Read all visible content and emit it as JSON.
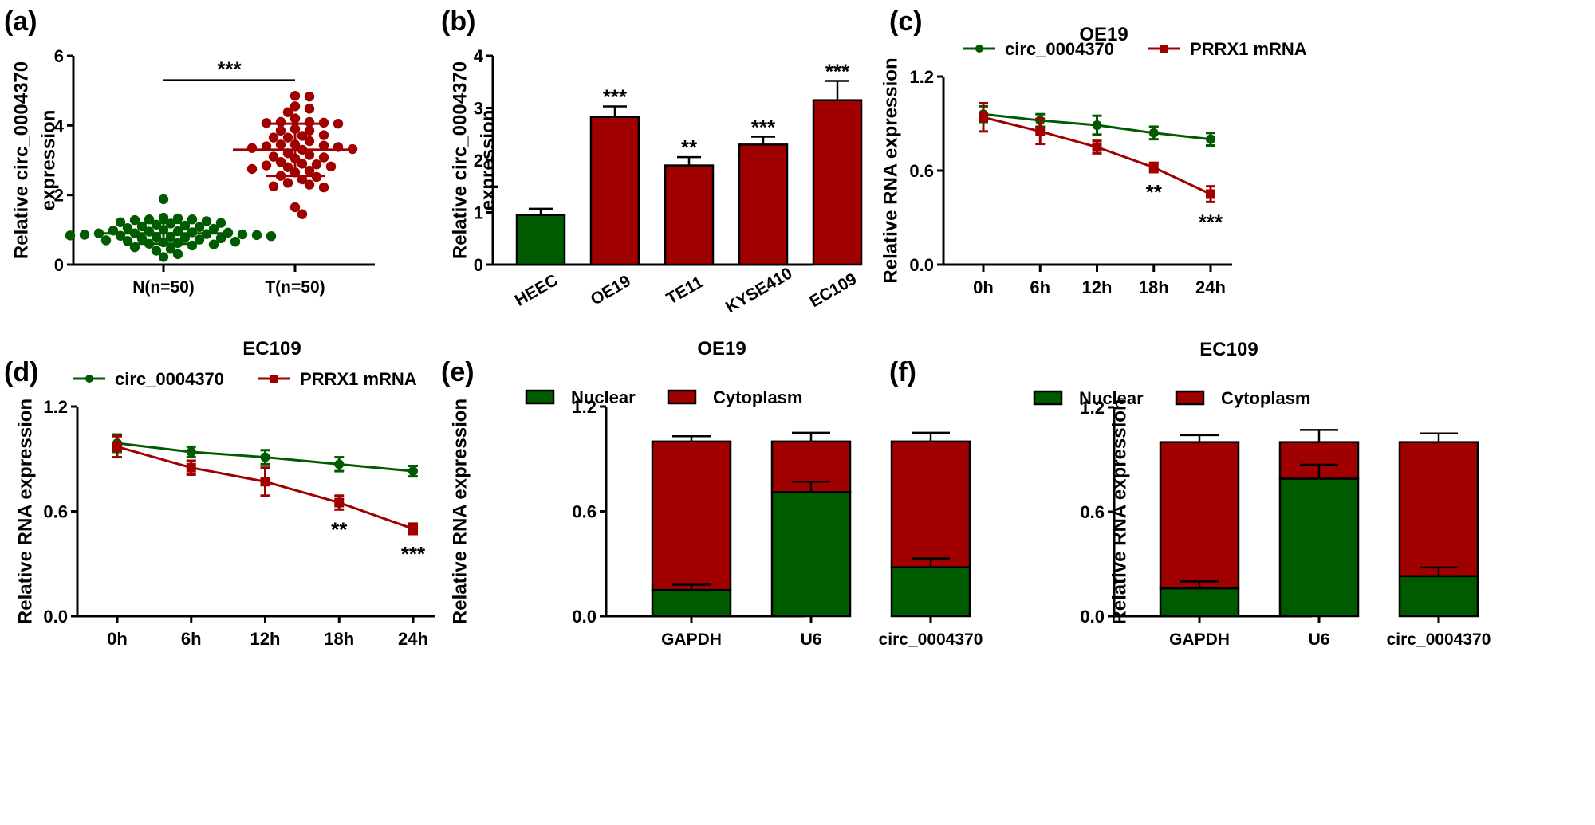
{
  "colors": {
    "green": "#005A00",
    "red": "#A00000",
    "axis": "#000000"
  },
  "chart_data": [
    {
      "id": "a",
      "panel_label": "(a)",
      "type": "scatter",
      "title": "",
      "xlabel": "",
      "ylabel_lines": [
        "Relative circ_0004370",
        "expression"
      ],
      "ylim": [
        0,
        6
      ],
      "yticks": [
        0,
        2,
        4,
        6
      ],
      "categories": [
        "N(n=50)",
        "T(n=50)"
      ],
      "series": [
        {
          "name": "N(n=50)",
          "color": "green",
          "mean": 0.9,
          "sd": 0.3,
          "values": [
            1.88,
            1.35,
            1.33,
            1.3,
            1.3,
            1.28,
            1.25,
            1.22,
            1.2,
            1.18,
            1.15,
            1.12,
            1.1,
            1.08,
            1.05,
            1.03,
            1.0,
            0.98,
            0.96,
            0.95,
            0.93,
            0.92,
            0.9,
            0.9,
            0.88,
            0.87,
            0.86,
            0.85,
            0.84,
            0.83,
            0.82,
            0.8,
            0.8,
            0.78,
            0.76,
            0.75,
            0.72,
            0.7,
            0.68,
            0.66,
            0.64,
            0.62,
            0.6,
            0.58,
            0.55,
            0.5,
            0.45,
            0.4,
            0.3,
            0.22
          ]
        },
        {
          "name": "T(n=50)",
          "color": "red",
          "mean": 3.3,
          "sd": 0.75,
          "values": [
            4.85,
            4.83,
            4.55,
            4.48,
            4.38,
            4.2,
            4.1,
            4.1,
            4.08,
            4.07,
            4.05,
            3.9,
            3.85,
            3.85,
            3.72,
            3.7,
            3.65,
            3.65,
            3.55,
            3.45,
            3.45,
            3.42,
            3.4,
            3.38,
            3.35,
            3.32,
            3.3,
            3.2,
            3.15,
            3.1,
            3.08,
            3.05,
            2.95,
            2.9,
            2.88,
            2.85,
            2.82,
            2.8,
            2.75,
            2.7,
            2.65,
            2.55,
            2.52,
            2.45,
            2.35,
            2.3,
            2.25,
            2.22,
            1.65,
            1.45
          ]
        }
      ],
      "annotations": [
        {
          "text": "***",
          "between": [
            "N(n=50)",
            "T(n=50)"
          ],
          "bar_y": 5.3
        }
      ]
    },
    {
      "id": "b",
      "panel_label": "(b)",
      "type": "bar",
      "title": "",
      "xlabel": "",
      "ylabel_lines": [
        "Relative circ_0004370",
        "expression"
      ],
      "ylim": [
        0,
        4
      ],
      "yticks": [
        0,
        1,
        2,
        3,
        4
      ],
      "categories": [
        "HEEC",
        "OE19",
        "TE11",
        "KYSE410",
        "EC109"
      ],
      "values": [
        0.95,
        2.83,
        1.9,
        2.3,
        3.15
      ],
      "errors": [
        0.12,
        0.2,
        0.16,
        0.15,
        0.37
      ],
      "bar_colors": [
        "green",
        "red",
        "red",
        "red",
        "red"
      ],
      "significance": [
        "",
        "***",
        "**",
        "***",
        "***"
      ]
    },
    {
      "id": "c",
      "panel_label": "(c)",
      "type": "line",
      "title": "OE19",
      "xlabel": "",
      "ylabel_lines": [
        "Relative  RNA expression"
      ],
      "ylim": [
        0,
        1.2
      ],
      "yticks": [
        0.0,
        0.6,
        1.2
      ],
      "yticklabels": [
        "0.0",
        "0.6",
        "1.2"
      ],
      "categories": [
        "0h",
        "6h",
        "12h",
        "18h",
        "24h"
      ],
      "legend_position": "top",
      "series": [
        {
          "name": "circ_0004370",
          "color": "green",
          "marker": "circle",
          "values": [
            0.96,
            0.92,
            0.89,
            0.84,
            0.8
          ],
          "errors": [
            0.05,
            0.04,
            0.06,
            0.04,
            0.04
          ]
        },
        {
          "name": "PRRX1 mRNA",
          "color": "red",
          "marker": "square",
          "values": [
            0.94,
            0.85,
            0.75,
            0.62,
            0.45
          ],
          "errors": [
            0.09,
            0.08,
            0.04,
            0.03,
            0.05
          ]
        }
      ],
      "significance": [
        "",
        "",
        "",
        "**",
        "***"
      ]
    },
    {
      "id": "d",
      "panel_label": "(d)",
      "type": "line",
      "title": "EC109",
      "xlabel": "",
      "ylabel_lines": [
        "Relative  RNA expression"
      ],
      "ylim": [
        0,
        1.2
      ],
      "yticks": [
        0.0,
        0.6,
        1.2
      ],
      "yticklabels": [
        "0.0",
        "0.6",
        "1.2"
      ],
      "categories": [
        "0h",
        "6h",
        "12h",
        "18h",
        "24h"
      ],
      "legend_position": "top",
      "series": [
        {
          "name": "circ_0004370",
          "color": "green",
          "marker": "circle",
          "values": [
            0.99,
            0.94,
            0.91,
            0.87,
            0.83
          ],
          "errors": [
            0.05,
            0.03,
            0.04,
            0.04,
            0.03
          ]
        },
        {
          "name": "PRRX1 mRNA",
          "color": "red",
          "marker": "square",
          "values": [
            0.97,
            0.85,
            0.77,
            0.65,
            0.5
          ],
          "errors": [
            0.06,
            0.04,
            0.08,
            0.04,
            0.03
          ]
        }
      ],
      "significance": [
        "",
        "",
        "",
        "**",
        "***"
      ]
    },
    {
      "id": "e",
      "panel_label": "(e)",
      "type": "bar",
      "stacked": true,
      "title": "OE19",
      "xlabel": "",
      "ylabel_lines": [
        "Relative RNA expression"
      ],
      "ylim": [
        0,
        1.2
      ],
      "yticks": [
        0.0,
        0.6,
        1.2
      ],
      "yticklabels": [
        "0.0",
        "0.6",
        "1.2"
      ],
      "categories": [
        "GAPDH",
        "U6",
        "circ_0004370"
      ],
      "legend_position": "top",
      "series": [
        {
          "name": "Nuclear",
          "color": "green",
          "values": [
            0.15,
            0.71,
            0.28
          ],
          "errors": [
            0.03,
            0.06,
            0.05
          ]
        },
        {
          "name": "Cytoplasm",
          "color": "red",
          "values": [
            0.85,
            0.29,
            0.72
          ],
          "errors": [
            0.03,
            0.05,
            0.05
          ]
        }
      ]
    },
    {
      "id": "f",
      "panel_label": "(f)",
      "type": "bar",
      "stacked": true,
      "title": "EC109",
      "xlabel": "",
      "ylabel_lines": [
        "Relative RNA expression"
      ],
      "ylim": [
        0,
        1.2
      ],
      "yticks": [
        0.0,
        0.6,
        1.2
      ],
      "yticklabels": [
        "0.0",
        "0.6",
        "1.2"
      ],
      "categories": [
        "GAPDH",
        "U6",
        "circ_0004370"
      ],
      "legend_position": "top",
      "series": [
        {
          "name": "Nuclear",
          "color": "green",
          "values": [
            0.16,
            0.79,
            0.23
          ],
          "errors": [
            0.04,
            0.08,
            0.05
          ]
        },
        {
          "name": "Cytoplasm",
          "color": "red",
          "values": [
            0.84,
            0.21,
            0.77
          ],
          "errors": [
            0.04,
            0.07,
            0.05
          ]
        }
      ]
    }
  ]
}
